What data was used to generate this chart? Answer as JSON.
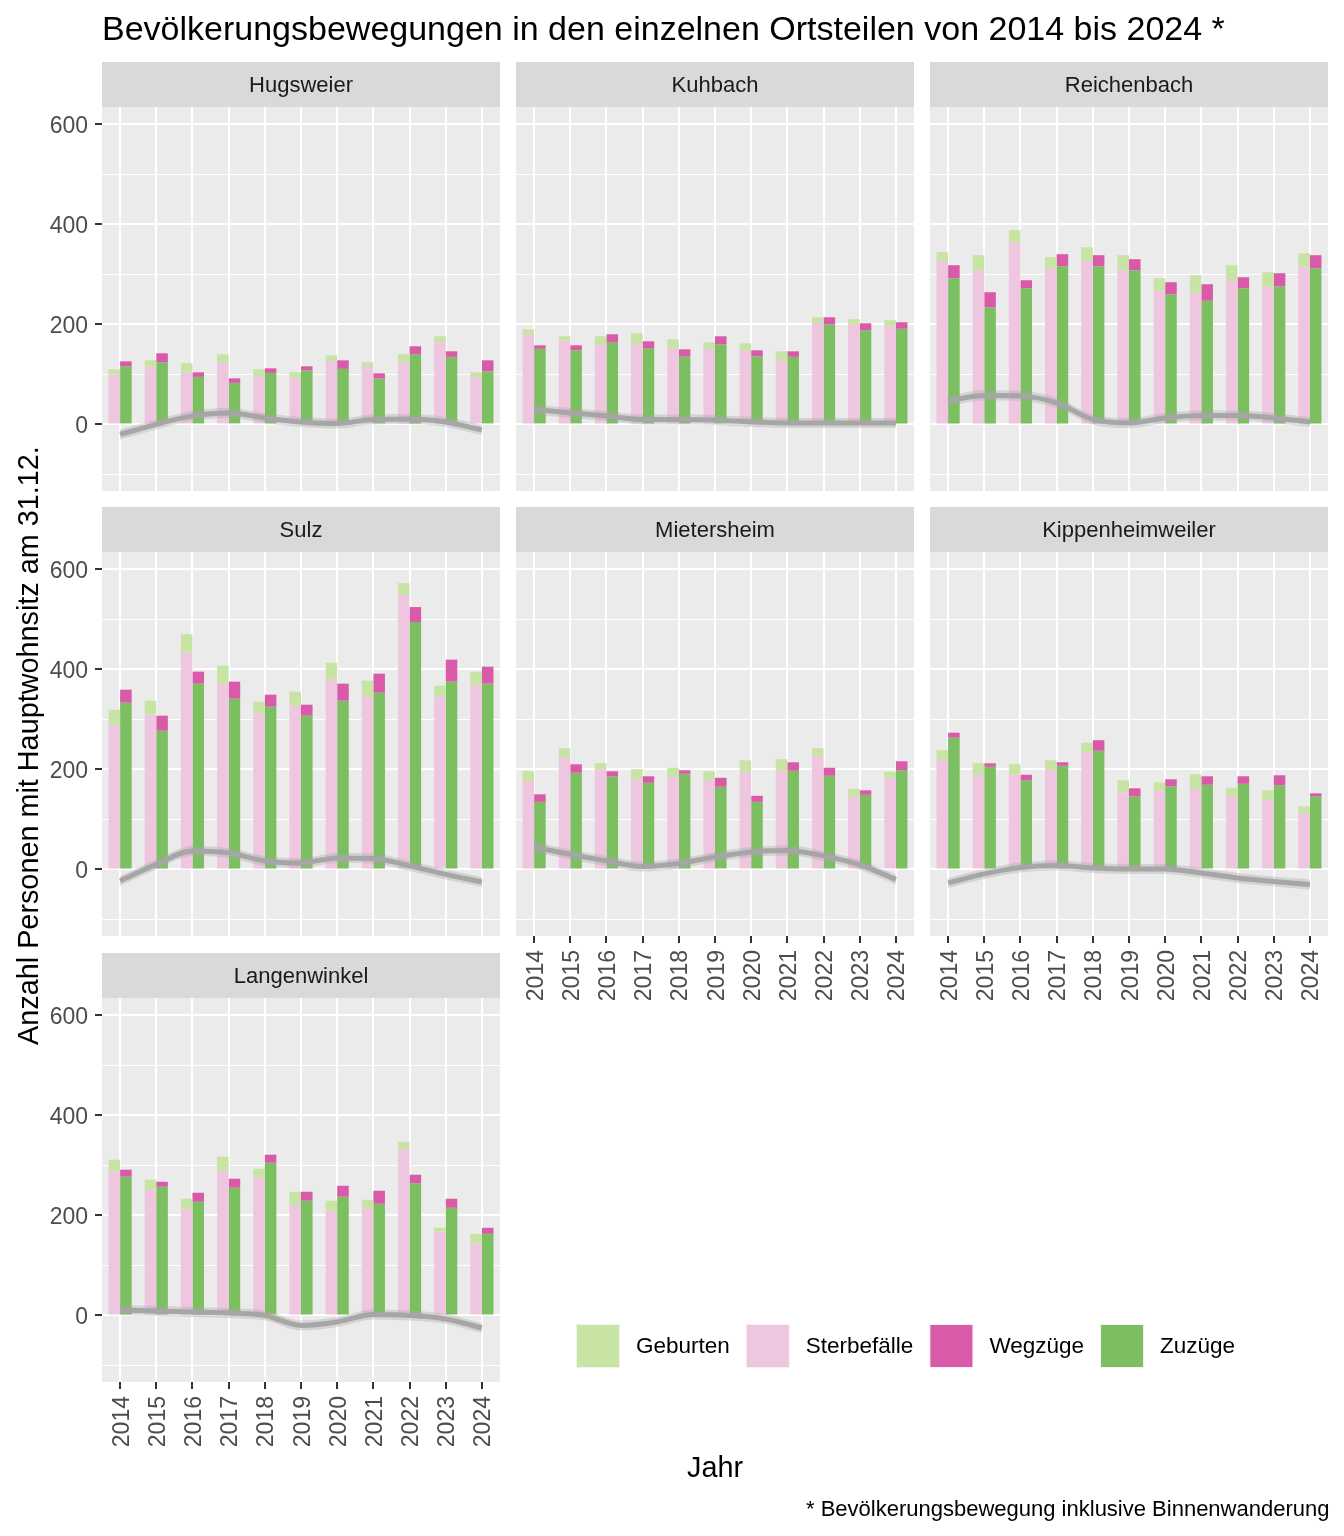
{
  "chart_data": [
    {
      "type": "other",
      "title": "Bevölkerungsbewegungen in den einzelnen Ortsteilen von 2014 bis 2024 *",
      "xlabel": "Jahr",
      "ylabel": "Anzahl Personen mit Hauptwohnsitz am 31.12.",
      "annotations": [
        "* Bevölkerungsbewegung inklusive Binnenwanderung"
      ]
    },
    {
      "type": "bar",
      "title": "Hugsweier",
      "categories": [
        "2014",
        "2015",
        "2016",
        "2017",
        "2018",
        "2019",
        "2020",
        "2021",
        "2022",
        "2023",
        "2024"
      ],
      "ylim": [
        -133,
        634
      ],
      "yticks": [
        {
          "value": -100,
          "label": null
        },
        0,
        {
          "value": 100,
          "label": null
        },
        200,
        {
          "value": 300,
          "label": null
        },
        400,
        {
          "value": 500,
          "label": null
        },
        600
      ],
      "grid": true,
      "tick_labels": "y",
      "series": [
        {
          "color": "#c7e4a4",
          "values": [
            10,
            13,
            18,
            16,
            14,
            12,
            11,
            9,
            16,
            12,
            9
          ],
          "base": [
            100,
            115,
            104,
            124,
            96,
            92,
            127,
            115,
            124,
            164,
            95
          ]
        },
        {
          "color": "#efc6df",
          "values": [
            100,
            115,
            104,
            124,
            96,
            92,
            127,
            115,
            124,
            164,
            95
          ]
        },
        {
          "color": "#d85aa8",
          "values": [
            10,
            18,
            9,
            9,
            9,
            8,
            17,
            10,
            16,
            11,
            22
          ],
          "base": [
            116,
            124,
            95,
            83,
            103,
            108,
            111,
            92,
            140,
            135,
            106
          ]
        },
        {
          "color": "#7cbf61",
          "values": [
            116,
            124,
            95,
            83,
            103,
            108,
            111,
            92,
            140,
            135,
            106
          ]
        },
        {
          "type": "line",
          "color": "#a6a6a6",
          "values": [
            -20,
            0,
            17,
            23,
            13,
            5,
            2,
            10,
            11,
            5,
            -11
          ],
          "lower": [
            -30,
            -10,
            7,
            13,
            3,
            -5,
            -8,
            0,
            1,
            -5,
            -21
          ],
          "upper": [
            -10,
            10,
            27,
            33,
            23,
            15,
            12,
            20,
            21,
            15,
            -1
          ]
        }
      ]
    },
    {
      "type": "bar",
      "title": "Kuhbach",
      "categories": [
        "2014",
        "2015",
        "2016",
        "2017",
        "2018",
        "2019",
        "2020",
        "2021",
        "2022",
        "2023",
        "2024"
      ],
      "ylim": [
        -133,
        634
      ],
      "yticks": [
        {
          "value": -100,
          "label": null
        },
        0,
        {
          "value": 100,
          "label": null
        },
        200,
        {
          "value": 300,
          "label": null
        },
        400,
        {
          "value": 500,
          "label": null
        },
        600
      ],
      "grid": true,
      "tick_labels": false,
      "series": [
        {
          "color": "#c7e4a4",
          "values": [
            11,
            9,
            16,
            22,
            19,
            13,
            14,
            19,
            11,
            10,
            12
          ],
          "base": [
            179,
            167,
            160,
            160,
            151,
            151,
            148,
            127,
            203,
            200,
            196
          ]
        },
        {
          "color": "#efc6df",
          "values": [
            179,
            167,
            160,
            160,
            151,
            151,
            148,
            127,
            203,
            200,
            196
          ]
        },
        {
          "color": "#d85aa8",
          "values": [
            7,
            10,
            16,
            14,
            14,
            16,
            12,
            11,
            14,
            14,
            13
          ],
          "base": [
            151,
            148,
            164,
            152,
            136,
            160,
            136,
            135,
            200,
            188,
            191
          ]
        },
        {
          "color": "#7cbf61",
          "values": [
            151,
            148,
            164,
            152,
            136,
            160,
            136,
            135,
            200,
            188,
            191
          ]
        },
        {
          "type": "line",
          "color": "#a6a6a6",
          "values": [
            30,
            23,
            17,
            10,
            10,
            9,
            5,
            3,
            3,
            3,
            3
          ],
          "lower": [
            20,
            13,
            7,
            0,
            0,
            -1,
            -5,
            -7,
            -7,
            -7,
            -7
          ],
          "upper": [
            40,
            33,
            27,
            20,
            20,
            19,
            15,
            13,
            13,
            13,
            13
          ]
        }
      ]
    },
    {
      "type": "bar",
      "title": "Reichenbach",
      "categories": [
        "2014",
        "2015",
        "2016",
        "2017",
        "2018",
        "2019",
        "2020",
        "2021",
        "2022",
        "2023",
        "2024"
      ],
      "ylim": [
        -133,
        634
      ],
      "yticks": [
        {
          "value": -100,
          "label": null
        },
        0,
        {
          "value": 100,
          "label": null
        },
        200,
        {
          "value": 300,
          "label": null
        },
        400,
        {
          "value": 500,
          "label": null
        },
        600
      ],
      "grid": true,
      "tick_labels": false,
      "series": [
        {
          "color": "#c7e4a4",
          "values": [
            17,
            30,
            24,
            22,
            27,
            30,
            25,
            35,
            31,
            29,
            27
          ],
          "base": [
            327,
            308,
            364,
            312,
            327,
            308,
            267,
            263,
            287,
            275,
            315
          ]
        },
        {
          "color": "#efc6df",
          "values": [
            327,
            308,
            364,
            312,
            327,
            308,
            267,
            263,
            287,
            275,
            315
          ]
        },
        {
          "color": "#d85aa8",
          "values": [
            26,
            30,
            16,
            24,
            22,
            22,
            24,
            33,
            22,
            26,
            26
          ],
          "base": [
            292,
            234,
            272,
            316,
            316,
            308,
            260,
            247,
            272,
            276,
            312
          ]
        },
        {
          "color": "#7cbf61",
          "values": [
            292,
            234,
            272,
            316,
            316,
            308,
            260,
            247,
            272,
            276,
            312
          ]
        },
        {
          "type": "line",
          "color": "#a6a6a6",
          "values": [
            47,
            58,
            57,
            43,
            10,
            3,
            13,
            18,
            18,
            13,
            5
          ],
          "lower": [
            37,
            48,
            47,
            33,
            0,
            -7,
            3,
            8,
            8,
            3,
            -5
          ],
          "upper": [
            57,
            68,
            67,
            53,
            20,
            13,
            23,
            28,
            28,
            23,
            15
          ]
        }
      ]
    },
    {
      "type": "bar",
      "title": "Sulz",
      "categories": [
        "2014",
        "2015",
        "2016",
        "2017",
        "2018",
        "2019",
        "2020",
        "2021",
        "2022",
        "2023",
        "2024"
      ],
      "ylim": [
        -133,
        634
      ],
      "yticks": [
        {
          "value": -100,
          "label": null
        },
        0,
        {
          "value": 100,
          "label": null
        },
        200,
        {
          "value": 300,
          "label": null
        },
        400,
        {
          "value": 500,
          "label": null
        },
        600
      ],
      "grid": true,
      "tick_labels": "y",
      "series": [
        {
          "color": "#c7e4a4",
          "values": [
            30,
            28,
            37,
            36,
            24,
            28,
            33,
            32,
            24,
            22,
            26
          ],
          "base": [
            289,
            309,
            433,
            371,
            311,
            327,
            380,
            345,
            548,
            345,
            369
          ]
        },
        {
          "color": "#efc6df",
          "values": [
            289,
            309,
            433,
            371,
            311,
            327,
            380,
            345,
            548,
            345,
            369
          ]
        },
        {
          "color": "#d85aa8",
          "values": [
            26,
            30,
            24,
            34,
            24,
            22,
            34,
            38,
            30,
            44,
            34
          ],
          "base": [
            333,
            277,
            371,
            341,
            325,
            307,
            337,
            353,
            494,
            375,
            371
          ]
        },
        {
          "color": "#7cbf61",
          "values": [
            333,
            277,
            371,
            341,
            325,
            307,
            337,
            353,
            494,
            375,
            371
          ]
        },
        {
          "type": "line",
          "color": "#a6a6a6",
          "values": [
            -23,
            10,
            37,
            33,
            17,
            13,
            23,
            22,
            7,
            -10,
            -25
          ],
          "lower": [
            -33,
            0,
            27,
            23,
            7,
            3,
            13,
            12,
            -3,
            -20,
            -35
          ],
          "upper": [
            -13,
            20,
            47,
            43,
            27,
            23,
            33,
            32,
            17,
            0,
            -15
          ]
        }
      ]
    },
    {
      "type": "bar",
      "title": "Mietersheim",
      "categories": [
        "2014",
        "2015",
        "2016",
        "2017",
        "2018",
        "2019",
        "2020",
        "2021",
        "2022",
        "2023",
        "2024"
      ],
      "ylim": [
        -133,
        634
      ],
      "yticks": [
        {
          "value": -100,
          "label": null
        },
        0,
        {
          "value": 100,
          "label": null
        },
        200,
        {
          "value": 300,
          "label": null
        },
        400,
        {
          "value": 500,
          "label": null
        },
        600
      ],
      "grid": true,
      "tick_labels": "x",
      "series": [
        {
          "color": "#c7e4a4",
          "values": [
            20,
            18,
            12,
            20,
            18,
            17,
            23,
            23,
            16,
            16,
            13
          ],
          "base": [
            176,
            224,
            200,
            180,
            185,
            179,
            195,
            197,
            226,
            145,
            182
          ]
        },
        {
          "color": "#efc6df",
          "values": [
            176,
            224,
            200,
            180,
            185,
            179,
            195,
            197,
            226,
            145,
            182
          ]
        },
        {
          "color": "#d85aa8",
          "values": [
            15,
            17,
            10,
            13,
            7,
            18,
            12,
            17,
            16,
            9,
            18
          ],
          "base": [
            135,
            193,
            186,
            173,
            191,
            165,
            135,
            197,
            187,
            149,
            198
          ]
        },
        {
          "color": "#7cbf61",
          "values": [
            135,
            193,
            186,
            173,
            191,
            165,
            135,
            197,
            187,
            149,
            198
          ]
        },
        {
          "type": "line",
          "color": "#a6a6a6",
          "values": [
            45,
            30,
            17,
            6,
            12,
            25,
            35,
            38,
            27,
            9,
            -20
          ],
          "lower": [
            35,
            20,
            7,
            -4,
            2,
            15,
            25,
            28,
            17,
            -1,
            -30
          ],
          "upper": [
            55,
            40,
            27,
            16,
            22,
            35,
            45,
            48,
            37,
            19,
            -10
          ]
        }
      ]
    },
    {
      "type": "bar",
      "title": "Kippenheimweiler",
      "categories": [
        "2014",
        "2015",
        "2016",
        "2017",
        "2018",
        "2019",
        "2020",
        "2021",
        "2022",
        "2023",
        "2024"
      ],
      "ylim": [
        -133,
        634
      ],
      "yticks": [
        {
          "value": -100,
          "label": null
        },
        0,
        {
          "value": 100,
          "label": null
        },
        200,
        {
          "value": 300,
          "label": null
        },
        400,
        {
          "value": 500,
          "label": null
        },
        600
      ],
      "grid": true,
      "tick_labels": "x",
      "series": [
        {
          "color": "#c7e4a4",
          "values": [
            19,
            23,
            20,
            19,
            18,
            24,
            16,
            29,
            17,
            19,
            14
          ],
          "base": [
            219,
            189,
            190,
            199,
            235,
            154,
            158,
            161,
            146,
            139,
            112
          ]
        },
        {
          "color": "#efc6df",
          "values": [
            219,
            189,
            190,
            199,
            235,
            154,
            158,
            161,
            146,
            139,
            112
          ]
        },
        {
          "color": "#d85aa8",
          "values": [
            10,
            7,
            11,
            7,
            21,
            16,
            14,
            17,
            15,
            20,
            6
          ],
          "base": [
            263,
            205,
            178,
            207,
            237,
            146,
            166,
            169,
            171,
            168,
            146
          ]
        },
        {
          "color": "#7cbf61",
          "values": [
            263,
            205,
            178,
            207,
            237,
            146,
            166,
            169,
            171,
            168,
            146
          ]
        },
        {
          "type": "line",
          "color": "#a6a6a6",
          "values": [
            -27,
            -9,
            4,
            8,
            3,
            1,
            1,
            -7,
            -17,
            -24,
            -30
          ],
          "lower": [
            -37,
            -19,
            -6,
            -2,
            -7,
            -9,
            -9,
            -17,
            -27,
            -34,
            -40
          ],
          "upper": [
            -17,
            1,
            14,
            18,
            13,
            11,
            11,
            3,
            -7,
            -14,
            -20
          ]
        }
      ]
    },
    {
      "type": "bar",
      "title": "Langenwinkel",
      "categories": [
        "2014",
        "2015",
        "2016",
        "2017",
        "2018",
        "2019",
        "2020",
        "2021",
        "2022",
        "2023",
        "2024"
      ],
      "ylim": [
        -133,
        634
      ],
      "yticks": [
        {
          "value": -100,
          "label": null
        },
        0,
        {
          "value": 100,
          "label": null
        },
        200,
        {
          "value": 300,
          "label": null
        },
        400,
        {
          "value": 500,
          "label": null
        },
        600
      ],
      "grid": true,
      "legend": "right",
      "series": [
        {
          "name": "Geburten",
          "color": "#c7e4a4",
          "values": [
            23,
            20,
            20,
            29,
            17,
            26,
            20,
            18,
            15,
            8,
            19
          ],
          "base": [
            288,
            251,
            213,
            288,
            276,
            221,
            209,
            213,
            332,
            167,
            144
          ]
        },
        {
          "name": "Sterbefälle",
          "color": "#efc6df",
          "values": [
            288,
            251,
            213,
            288,
            276,
            221,
            209,
            213,
            332,
            167,
            144
          ]
        },
        {
          "name": "Wegzüge",
          "color": "#d85aa8",
          "values": [
            14,
            10,
            18,
            18,
            16,
            18,
            22,
            26,
            17,
            18,
            12
          ],
          "base": [
            277,
            257,
            227,
            255,
            305,
            229,
            237,
            223,
            264,
            215,
            163
          ]
        },
        {
          "name": "Zuzüge",
          "color": "#7cbf61",
          "values": [
            277,
            257,
            227,
            255,
            305,
            229,
            237,
            223,
            264,
            215,
            163
          ]
        },
        {
          "type": "line",
          "color": "#a6a6a6",
          "values": [
            11,
            9,
            7,
            5,
            0,
            -20,
            -13,
            2,
            0,
            -7,
            -25
          ],
          "lower": [
            1,
            -1,
            -3,
            -5,
            -10,
            -30,
            -23,
            -8,
            -10,
            -17,
            -35
          ],
          "upper": [
            21,
            19,
            17,
            15,
            10,
            -10,
            -3,
            12,
            10,
            3,
            -15
          ]
        }
      ]
    }
  ]
}
